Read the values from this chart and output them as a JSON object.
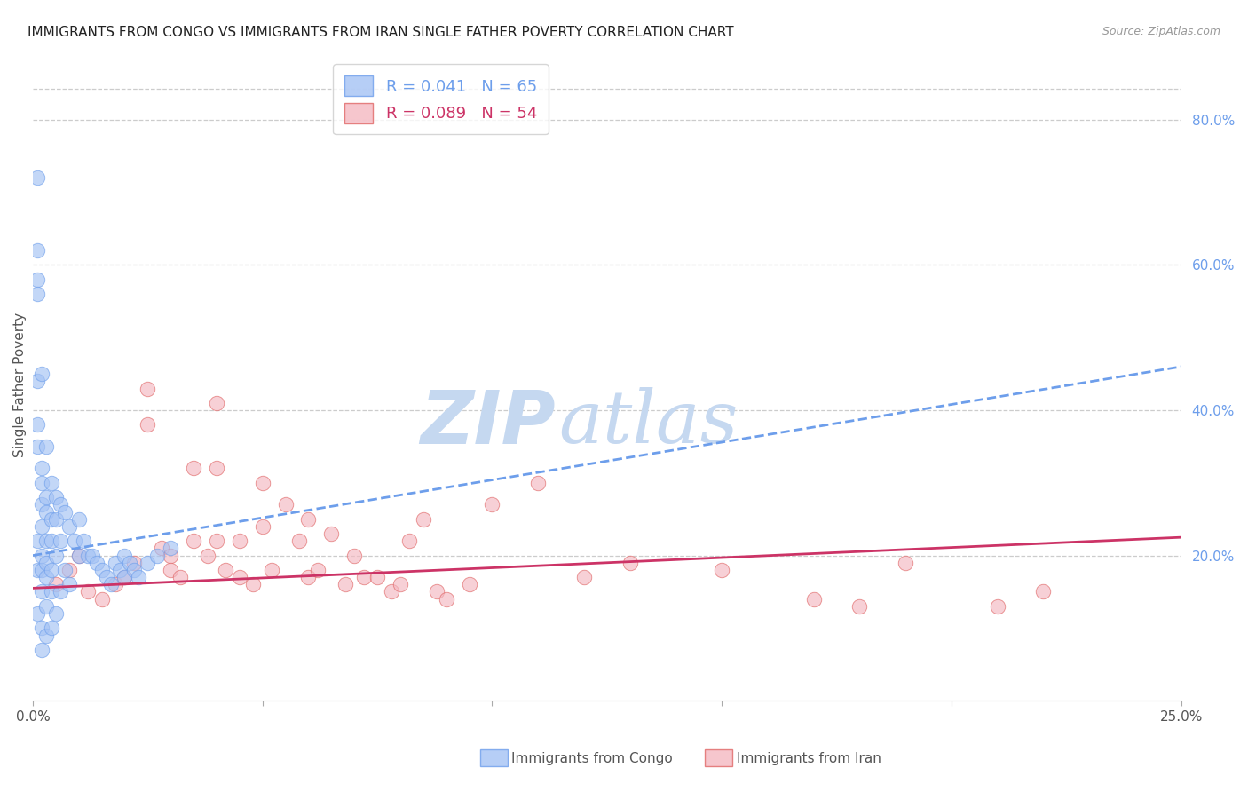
{
  "title": "IMMIGRANTS FROM CONGO VS IMMIGRANTS FROM IRAN SINGLE FATHER POVERTY CORRELATION CHART",
  "source": "Source: ZipAtlas.com",
  "ylabel": "Single Father Poverty",
  "legend_labels": [
    "Immigrants from Congo",
    "Immigrants from Iran"
  ],
  "congo_R": 0.041,
  "congo_N": 65,
  "iran_R": 0.089,
  "iran_N": 54,
  "congo_color": "#a4c2f4",
  "iran_color": "#f4b8c1",
  "congo_edge_color": "#6d9eeb",
  "iran_edge_color": "#e06666",
  "congo_line_color": "#6d9eeb",
  "iran_line_color": "#cc3366",
  "xlim_min": 0.0,
  "xlim_max": 0.25,
  "ylim_min": 0.0,
  "ylim_max": 0.87,
  "x_ticks": [
    0.0,
    0.05,
    0.1,
    0.15,
    0.2,
    0.25
  ],
  "x_tick_labels": [
    "0.0%",
    "",
    "",
    "",
    "",
    "25.0%"
  ],
  "y_ticks_right": [
    0.2,
    0.4,
    0.6,
    0.8
  ],
  "grid_color": "#cccccc",
  "watermark_zip_color": "#c5d8f0",
  "watermark_atlas_color": "#c5d8f0",
  "legend_box_color": "#cccccc",
  "tick_fontsize": 11,
  "legend_fontsize": 13,
  "title_fontsize": 11,
  "ylabel_fontsize": 11,
  "congo_x": [
    0.001,
    0.001,
    0.001,
    0.001,
    0.001,
    0.001,
    0.001,
    0.001,
    0.001,
    0.001,
    0.002,
    0.002,
    0.002,
    0.002,
    0.002,
    0.002,
    0.002,
    0.002,
    0.002,
    0.002,
    0.003,
    0.003,
    0.003,
    0.003,
    0.003,
    0.003,
    0.003,
    0.003,
    0.004,
    0.004,
    0.004,
    0.004,
    0.004,
    0.004,
    0.005,
    0.005,
    0.005,
    0.005,
    0.006,
    0.006,
    0.006,
    0.007,
    0.007,
    0.008,
    0.008,
    0.009,
    0.01,
    0.01,
    0.011,
    0.012,
    0.013,
    0.014,
    0.015,
    0.016,
    0.017,
    0.018,
    0.019,
    0.02,
    0.02,
    0.021,
    0.022,
    0.023,
    0.025,
    0.027,
    0.03
  ],
  "congo_y": [
    0.72,
    0.62,
    0.58,
    0.56,
    0.44,
    0.38,
    0.35,
    0.22,
    0.18,
    0.12,
    0.45,
    0.32,
    0.3,
    0.27,
    0.24,
    0.2,
    0.18,
    0.15,
    0.1,
    0.07,
    0.35,
    0.28,
    0.26,
    0.22,
    0.19,
    0.17,
    0.13,
    0.09,
    0.3,
    0.25,
    0.22,
    0.18,
    0.15,
    0.1,
    0.28,
    0.25,
    0.2,
    0.12,
    0.27,
    0.22,
    0.15,
    0.26,
    0.18,
    0.24,
    0.16,
    0.22,
    0.25,
    0.2,
    0.22,
    0.2,
    0.2,
    0.19,
    0.18,
    0.17,
    0.16,
    0.19,
    0.18,
    0.2,
    0.17,
    0.19,
    0.18,
    0.17,
    0.19,
    0.2,
    0.21
  ],
  "iran_x": [
    0.005,
    0.008,
    0.01,
    0.012,
    0.015,
    0.018,
    0.02,
    0.022,
    0.025,
    0.025,
    0.028,
    0.03,
    0.03,
    0.032,
    0.035,
    0.035,
    0.038,
    0.04,
    0.04,
    0.04,
    0.042,
    0.045,
    0.045,
    0.048,
    0.05,
    0.05,
    0.052,
    0.055,
    0.058,
    0.06,
    0.06,
    0.062,
    0.065,
    0.068,
    0.07,
    0.072,
    0.075,
    0.078,
    0.08,
    0.082,
    0.085,
    0.088,
    0.09,
    0.095,
    0.1,
    0.11,
    0.12,
    0.13,
    0.15,
    0.17,
    0.18,
    0.19,
    0.21,
    0.22
  ],
  "iran_y": [
    0.16,
    0.18,
    0.2,
    0.15,
    0.14,
    0.16,
    0.17,
    0.19,
    0.43,
    0.38,
    0.21,
    0.2,
    0.18,
    0.17,
    0.32,
    0.22,
    0.2,
    0.41,
    0.32,
    0.22,
    0.18,
    0.22,
    0.17,
    0.16,
    0.3,
    0.24,
    0.18,
    0.27,
    0.22,
    0.25,
    0.17,
    0.18,
    0.23,
    0.16,
    0.2,
    0.17,
    0.17,
    0.15,
    0.16,
    0.22,
    0.25,
    0.15,
    0.14,
    0.16,
    0.27,
    0.3,
    0.17,
    0.19,
    0.18,
    0.14,
    0.13,
    0.19,
    0.13,
    0.15
  ]
}
